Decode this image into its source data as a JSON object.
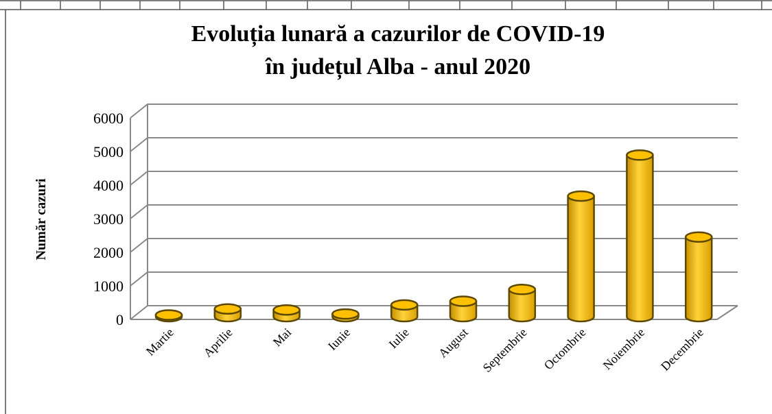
{
  "chart_data": {
    "type": "bar3d",
    "title": [
      "Evoluția lunară a cazurilor de COVID-19",
      "în județul Alba - anul 2020"
    ],
    "y_label": "Număr cazuri",
    "categories": [
      "Martie",
      "Aprilie",
      "Mai",
      "Iunie",
      "Iulie",
      "August",
      "Septembrie",
      "Octombrie",
      "Noiembrie",
      "Decembrie"
    ],
    "values": [
      50,
      230,
      200,
      80,
      350,
      460,
      810,
      3590,
      4810,
      2370
    ],
    "color": "#ffc000",
    "ylim": [
      0,
      6000
    ],
    "yticks": [
      0,
      1000,
      2000,
      3000,
      4000,
      5000,
      6000
    ],
    "grid": true
  }
}
